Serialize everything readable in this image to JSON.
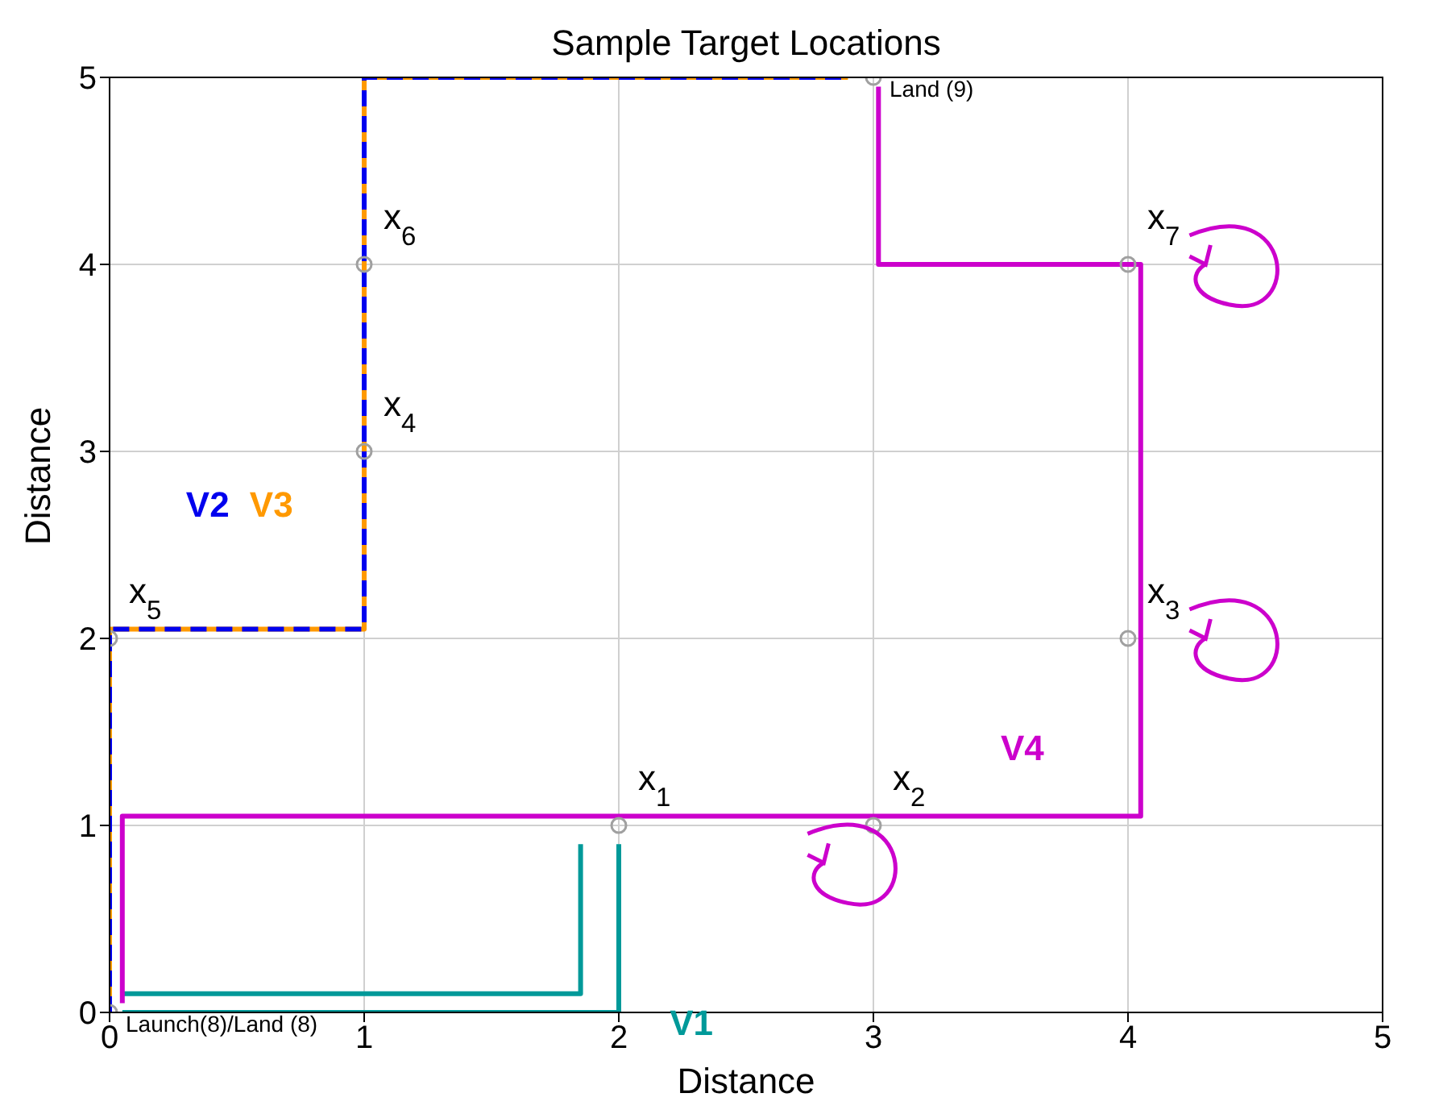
{
  "chart_data": {
    "type": "line",
    "title": "Sample Target Locations",
    "xlabel": "Distance",
    "ylabel": "Distance",
    "xlim": [
      0,
      5
    ],
    "ylim": [
      0,
      5
    ],
    "xticks": [
      0,
      1,
      2,
      3,
      4,
      5
    ],
    "yticks": [
      0,
      1,
      2,
      3,
      4,
      5
    ],
    "grid": true,
    "legend": false,
    "series": [
      {
        "type": "scatter",
        "color": "#a0a0a0",
        "marker": "circle",
        "x": [
          0,
          2,
          3,
          4,
          1,
          0,
          1,
          4,
          3
        ],
        "values": [
          0,
          1,
          1,
          2,
          3,
          2,
          4,
          4,
          5
        ]
      },
      {
        "name": "V1",
        "type": "line",
        "color": "#009999",
        "marker": "none",
        "line_style": "solid",
        "x": [
          0.05,
          1.85,
          1.85,
          1.9,
          2,
          2,
          0.05
        ],
        "values": [
          0.1,
          0.1,
          0.9,
          null,
          0.9,
          0,
          0
        ]
      },
      {
        "name": "V3",
        "type": "line",
        "color": "#ff9900",
        "marker": "none",
        "line_style": "solid",
        "x": [
          0,
          0,
          1,
          1,
          2.9
        ],
        "values": [
          0,
          2.05,
          2.05,
          5,
          5
        ]
      },
      {
        "name": "V2",
        "type": "line",
        "color": "#0000ee",
        "marker": "none",
        "line_style": "dashed",
        "x": [
          0,
          0,
          1,
          1,
          2.9
        ],
        "values": [
          0,
          2.05,
          2.05,
          5,
          5
        ]
      },
      {
        "name": "V4",
        "type": "line",
        "color": "#cc00cc",
        "marker": "none",
        "line_style": "solid",
        "x": [
          0.05,
          0.05,
          4.05,
          4.05,
          3.02,
          3.02
        ],
        "values": [
          0.05,
          1.05,
          1.05,
          4,
          4,
          4.95
        ]
      }
    ],
    "annotations": [
      {
        "text": "x$_{1}$",
        "x": 2,
        "y": 1
      },
      {
        "text": "x$_{2}$",
        "x": 3,
        "y": 1
      },
      {
        "text": "x$_{3}$",
        "x": 4,
        "y": 2
      },
      {
        "text": "x$_{4}$",
        "x": 1,
        "y": 3
      },
      {
        "text": "x$_{5}$",
        "x": 0,
        "y": 2
      },
      {
        "text": "x$_{6}$",
        "x": 1,
        "y": 4
      },
      {
        "text": "x$_{7}$",
        "x": 4,
        "y": 4
      },
      {
        "text": "Land (9)",
        "x": 3,
        "y": 5
      },
      {
        "text": "Launch(8)/Land (8)",
        "x": 0,
        "y": 0
      }
    ]
  }
}
